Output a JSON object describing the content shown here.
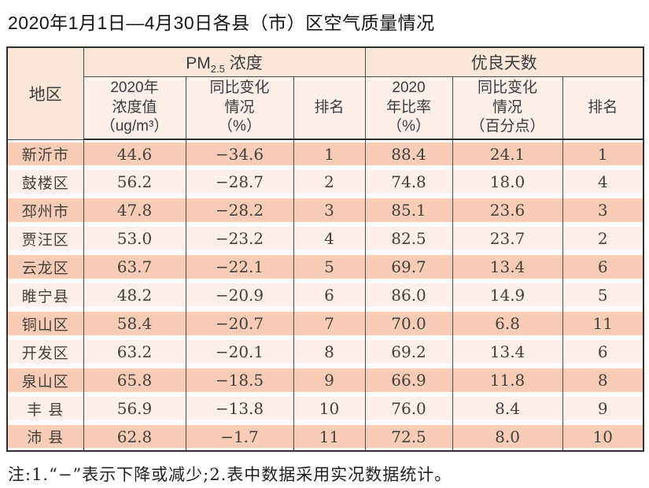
{
  "page": {
    "title": "2020年1月1日—4月30日各县（市）区空气质量情况",
    "note": "注:1.“−”表示下降或减少;2.表中数据采用实况数据统计。"
  },
  "colors": {
    "row_odd_bg": "#f8ccb6",
    "row_even_bg": "#fdf0e9",
    "group_header_bg": "#fae7da",
    "subheader_bg": "#fcf0e9",
    "corner_bg": "#fbece2",
    "inner_border": "#4a4a4a",
    "outer_border": "#303030"
  },
  "table": {
    "corner_header": "地区",
    "groups": [
      {
        "prefix": "PM",
        "sub": "2.5",
        "suffix": " 浓度"
      },
      {
        "label": "优良天数"
      }
    ],
    "subheaders": [
      "2020年\n浓度值\n（ug/m³）",
      "同比变化\n情况\n（%）",
      "排名",
      "2020\n年比率\n（%）",
      "同比变化\n情况\n（百分点）",
      "排名"
    ],
    "rows": [
      [
        "新沂市",
        "44.6",
        "−34.6",
        "1",
        "88.4",
        "24.1",
        "1"
      ],
      [
        "鼓楼区",
        "56.2",
        "−28.7",
        "2",
        "74.8",
        "18.0",
        "4"
      ],
      [
        "邳州市",
        "47.8",
        "−28.2",
        "3",
        "85.1",
        "23.6",
        "3"
      ],
      [
        "贾汪区",
        "53.0",
        "−23.2",
        "4",
        "82.5",
        "23.7",
        "2"
      ],
      [
        "云龙区",
        "63.7",
        "−22.1",
        "5",
        "69.7",
        "13.4",
        "6"
      ],
      [
        "睢宁县",
        "48.2",
        "−20.9",
        "6",
        "86.0",
        "14.9",
        "5"
      ],
      [
        "铜山区",
        "58.4",
        "−20.7",
        "7",
        "70.0",
        "6.8",
        "11"
      ],
      [
        "开发区",
        "63.2",
        "−20.1",
        "8",
        "69.2",
        "13.4",
        "6"
      ],
      [
        "泉山区",
        "65.8",
        "−18.5",
        "9",
        "66.9",
        "11.8",
        "8"
      ],
      [
        "丰 县",
        "56.9",
        "−13.8",
        "10",
        "76.0",
        "8.4",
        "9"
      ],
      [
        "沛 县",
        "62.8",
        "−1.7",
        "11",
        "72.5",
        "8.0",
        "10"
      ]
    ]
  }
}
